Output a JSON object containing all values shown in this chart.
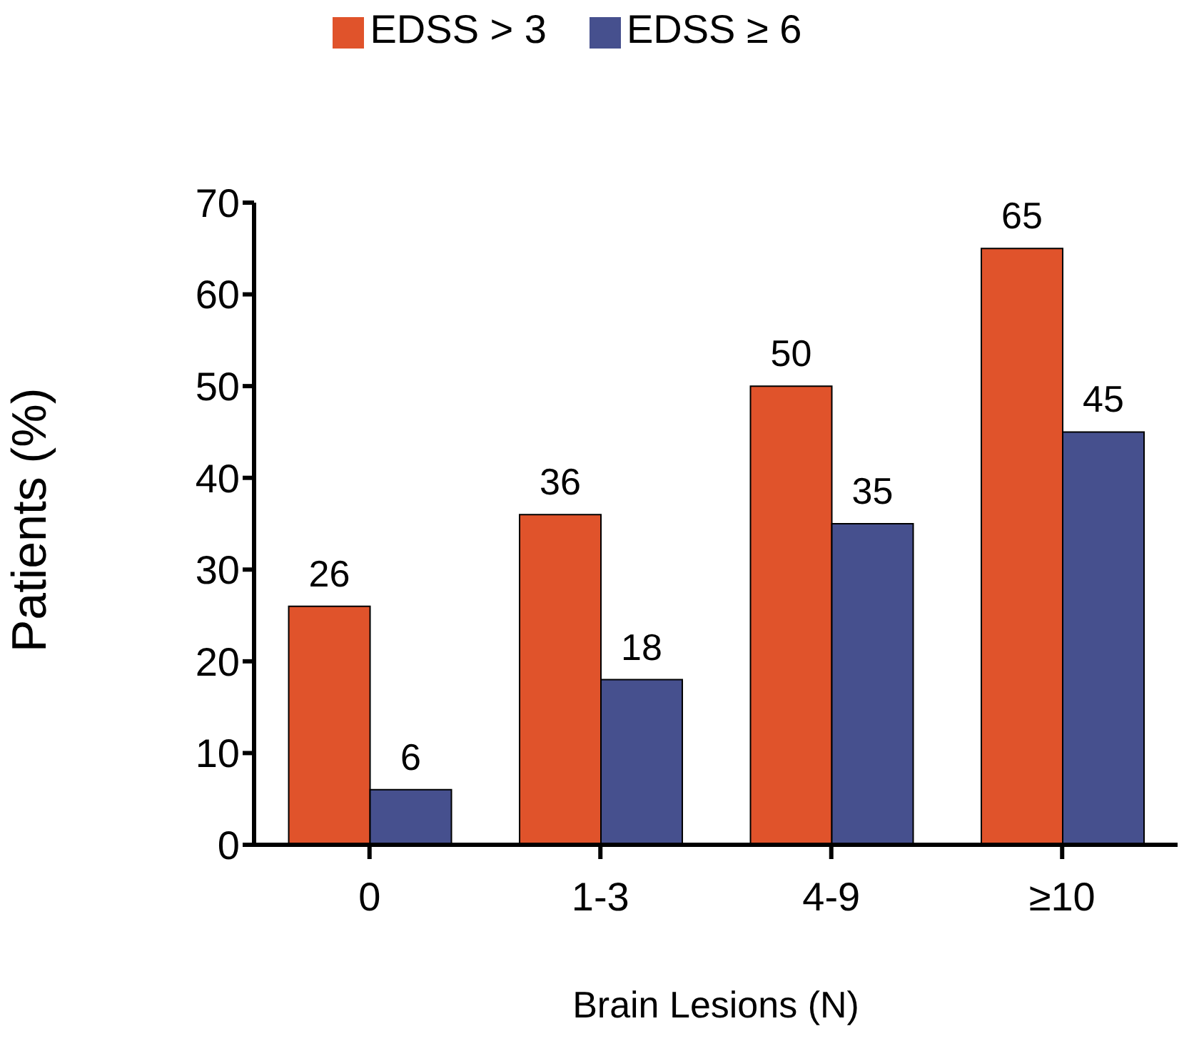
{
  "chart_data": {
    "type": "bar",
    "xlabel": "Brain Lesions (N)",
    "ylabel": "Patients (%)",
    "categories": [
      "0",
      "1-3",
      "4-9",
      "≥10"
    ],
    "series": [
      {
        "name": "EDSS > 3",
        "color": "#e0532b",
        "values": [
          26,
          36,
          50,
          65
        ]
      },
      {
        "name": "EDSS ≥ 6",
        "color": "#46508e",
        "values": [
          6,
          18,
          35,
          45
        ]
      }
    ],
    "ylim": [
      0,
      70
    ],
    "yticks": [
      0,
      10,
      20,
      30,
      40,
      50,
      60,
      70
    ],
    "data_labels": true,
    "legend": "top",
    "grid": false
  }
}
